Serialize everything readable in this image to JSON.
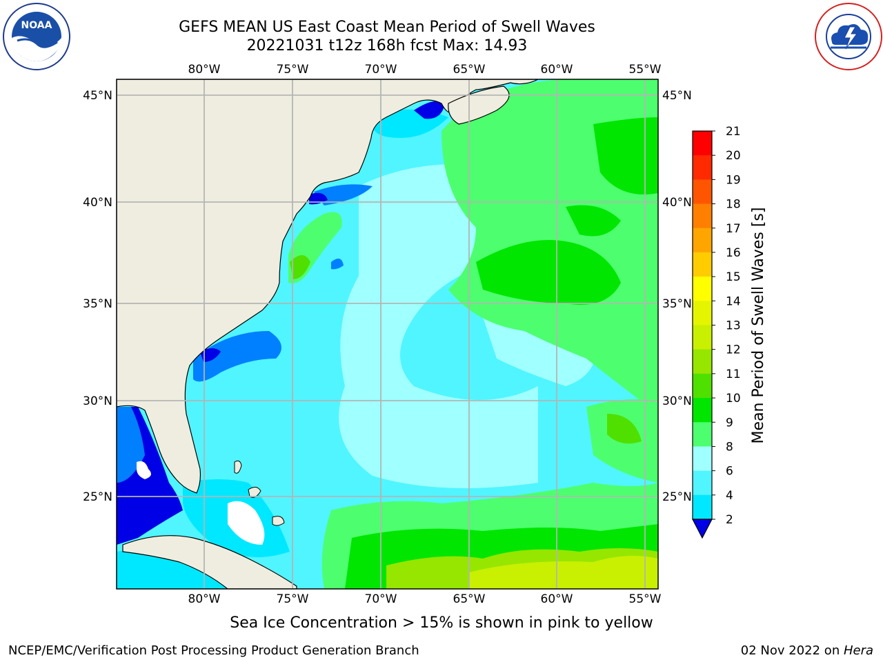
{
  "title": {
    "line1": "GEFS MEAN US East Coast Mean Period of Swell Waves",
    "line2": "20221031 t12z 168h fcst   Max: 14.93"
  },
  "logos": {
    "left": {
      "name": "noaa-logo",
      "text": "NOAA",
      "ring_text": "NATIONAL OCEANIC AND ATMOSPHERIC ADMINISTRATION · U.S. DEPARTMENT OF COMMERCE"
    },
    "right": {
      "name": "nws-logo",
      "ring_text": "NATIONAL WEATHER SERVICE"
    }
  },
  "map": {
    "lon_labels": [
      "80°W",
      "75°W",
      "70°W",
      "65°W",
      "60°W",
      "55°W"
    ],
    "lat_labels": [
      "45°N",
      "40°N",
      "35°N",
      "30°N",
      "25°N"
    ],
    "lon_range": [
      -84.7,
      -54.7
    ],
    "lat_range": [
      20.5,
      46.0
    ],
    "colors": {
      "land": "#eeeddf",
      "grid": "#b4b4b4",
      "coast": "#000000"
    }
  },
  "colorbar": {
    "label": "Mean Period of Swell Waves [s]",
    "ticks": [
      "21",
      "20",
      "19",
      "18",
      "17",
      "16",
      "15",
      "14",
      "13",
      "12",
      "11",
      "10",
      "9",
      "8",
      "6",
      "4",
      "2"
    ],
    "colors_top_to_bottom": [
      "#ff0000",
      "#ff2a00",
      "#ff5500",
      "#ff8000",
      "#ffa500",
      "#ffcc00",
      "#ffff00",
      "#e5f500",
      "#c8f000",
      "#96e600",
      "#50e000",
      "#00e600",
      "#4dff6e",
      "#a0ffff",
      "#50f5ff",
      "#00e8ff",
      "#0080ff"
    ],
    "extend_color": "#0000e6"
  },
  "caption": "Sea Ice Concentration > 15% is shown in pink to yellow",
  "footer": {
    "left": "NCEP/EMC/Verification Post Processing Product Generation Branch",
    "right_prefix": "02 Nov 2022 on ",
    "right_machine": "Hera"
  }
}
